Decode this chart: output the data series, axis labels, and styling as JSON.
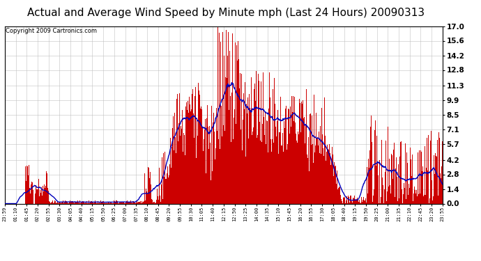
{
  "title": "Actual and Average Wind Speed by Minute mph (Last 24 Hours) 20090313",
  "copyright_text": "Copyright 2009 Cartronics.com",
  "y_ticks": [
    0.0,
    1.4,
    2.8,
    4.2,
    5.7,
    7.1,
    8.5,
    9.9,
    11.3,
    12.8,
    14.2,
    15.6,
    17.0
  ],
  "ylim": [
    0.0,
    17.0
  ],
  "bar_color": "#cc0000",
  "line_color": "#0000bb",
  "background_color": "#ffffff",
  "grid_color": "#bbbbbb",
  "title_fontsize": 11,
  "copyright_fontsize": 6,
  "x_tick_labels": [
    "23:59",
    "01:10",
    "01:45",
    "02:20",
    "02:55",
    "03:30",
    "04:05",
    "04:40",
    "05:15",
    "05:50",
    "06:25",
    "07:00",
    "07:35",
    "08:10",
    "08:45",
    "09:20",
    "09:55",
    "10:30",
    "11:05",
    "11:40",
    "12:15",
    "12:50",
    "13:25",
    "14:00",
    "14:35",
    "15:10",
    "15:45",
    "16:20",
    "16:55",
    "17:30",
    "18:05",
    "18:40",
    "19:15",
    "19:50",
    "20:25",
    "21:00",
    "21:35",
    "22:10",
    "22:45",
    "23:20",
    "23:55"
  ],
  "n_minutes": 1440
}
